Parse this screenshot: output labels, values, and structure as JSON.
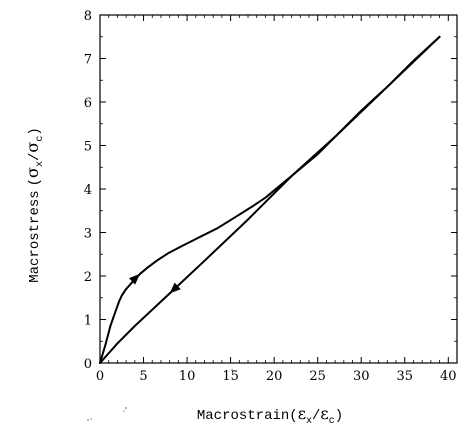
{
  "chart_data": {
    "type": "line",
    "xlabel": "Macrostrain",
    "ylabel": "Macrostress",
    "x_symbol": {
      "num": "ε",
      "num_sub": "x",
      "den": "ε",
      "den_sub": "c"
    },
    "y_symbol": {
      "num": "σ",
      "num_sub": "x",
      "den": "σ",
      "den_sub": "c"
    },
    "xlim": [
      0,
      41
    ],
    "ylim": [
      0,
      8
    ],
    "x_ticks": [
      0,
      5,
      10,
      15,
      20,
      25,
      30,
      35,
      40
    ],
    "y_ticks": [
      0,
      1,
      2,
      3,
      4,
      5,
      6,
      7,
      8
    ],
    "grid": false,
    "legend": "none",
    "series": [
      {
        "x": [
          0,
          0.6,
          1.2,
          1.8,
          2.2,
          2.5,
          3.0,
          3.8,
          4.6,
          5.5,
          6.5,
          7.8,
          9.5,
          11.5,
          13.5,
          15.5,
          17.5,
          19.0,
          20.5,
          22.0,
          23.5,
          25.0,
          27.0,
          30.0,
          33.0,
          36.0,
          39.0
        ],
        "y": [
          0,
          0.4,
          0.85,
          1.2,
          1.42,
          1.55,
          1.7,
          1.88,
          2.05,
          2.2,
          2.35,
          2.52,
          2.7,
          2.9,
          3.1,
          3.35,
          3.6,
          3.8,
          4.05,
          4.3,
          4.55,
          4.8,
          5.2,
          5.8,
          6.35,
          6.95,
          7.5
        ],
        "arrow": {
          "x": 4.6,
          "y": 2.05,
          "direction": "up"
        }
      },
      {
        "x": [
          39.0,
          33.0,
          27.0,
          22.0,
          17.0,
          12.0,
          8.0,
          4.0,
          2.0,
          0
        ],
        "y": [
          7.5,
          6.35,
          5.2,
          4.3,
          3.3,
          2.35,
          1.6,
          0.85,
          0.45,
          0
        ],
        "arrow": {
          "x": 8.0,
          "y": 1.6,
          "direction": "down"
        }
      }
    ]
  }
}
